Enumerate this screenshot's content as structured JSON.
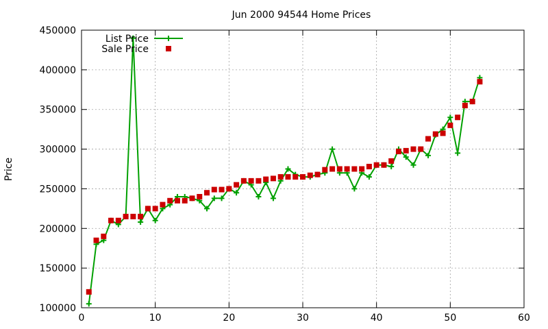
{
  "chart_data": {
    "type": "line",
    "title": "Jun 2000 94544 Home Prices",
    "xlabel": "",
    "ylabel": "Price",
    "xlim": [
      0,
      60
    ],
    "ylim": [
      100000,
      450000
    ],
    "x_ticks": [
      0,
      10,
      20,
      30,
      40,
      50,
      60
    ],
    "y_ticks": [
      100000,
      150000,
      200000,
      250000,
      300000,
      350000,
      400000,
      450000
    ],
    "grid": true,
    "legend_position": "top-left",
    "series": [
      {
        "name": "List Price",
        "style": "line-plus",
        "color": "#00a000",
        "x": [
          1,
          2,
          3,
          4,
          5,
          6,
          7,
          8,
          9,
          10,
          11,
          12,
          13,
          14,
          15,
          16,
          17,
          18,
          19,
          20,
          21,
          22,
          23,
          24,
          25,
          26,
          27,
          28,
          29,
          30,
          31,
          32,
          33,
          34,
          35,
          36,
          37,
          38,
          39,
          40,
          41,
          42,
          43,
          44,
          45,
          46,
          47,
          48,
          49,
          50,
          51,
          52,
          53,
          54
        ],
        "y": [
          105000,
          180000,
          185000,
          210000,
          205000,
          215000,
          440000,
          208000,
          225000,
          210000,
          225000,
          230000,
          240000,
          240000,
          238000,
          235000,
          225000,
          238000,
          238000,
          250000,
          245000,
          260000,
          255000,
          240000,
          258000,
          238000,
          260000,
          275000,
          268000,
          265000,
          265000,
          268000,
          270000,
          300000,
          270000,
          270000,
          250000,
          270000,
          265000,
          280000,
          280000,
          278000,
          300000,
          290000,
          280000,
          300000,
          292000,
          318000,
          325000,
          340000,
          295000,
          360000,
          360000,
          390000
        ]
      },
      {
        "name": "Sale Price",
        "style": "square",
        "color": "#cc0000",
        "x": [
          1,
          2,
          3,
          4,
          5,
          6,
          7,
          8,
          9,
          10,
          11,
          12,
          13,
          14,
          15,
          16,
          17,
          18,
          19,
          20,
          21,
          22,
          23,
          24,
          25,
          26,
          27,
          28,
          29,
          30,
          31,
          32,
          33,
          34,
          35,
          36,
          37,
          38,
          39,
          40,
          41,
          42,
          43,
          44,
          45,
          46,
          47,
          48,
          49,
          50,
          51,
          52,
          53,
          54
        ],
        "y": [
          120000,
          185000,
          190000,
          210000,
          210000,
          215000,
          215000,
          215000,
          225000,
          225000,
          230000,
          235000,
          235000,
          235000,
          238000,
          240000,
          245000,
          249000,
          249000,
          250000,
          255000,
          260000,
          260000,
          260000,
          262000,
          263000,
          265000,
          265000,
          265000,
          265000,
          267000,
          268000,
          274000,
          275000,
          275000,
          275000,
          275000,
          275000,
          278000,
          280000,
          280000,
          285000,
          297000,
          298000,
          300000,
          300000,
          313000,
          319000,
          320000,
          330000,
          340000,
          355000,
          360000,
          385000
        ]
      }
    ]
  }
}
